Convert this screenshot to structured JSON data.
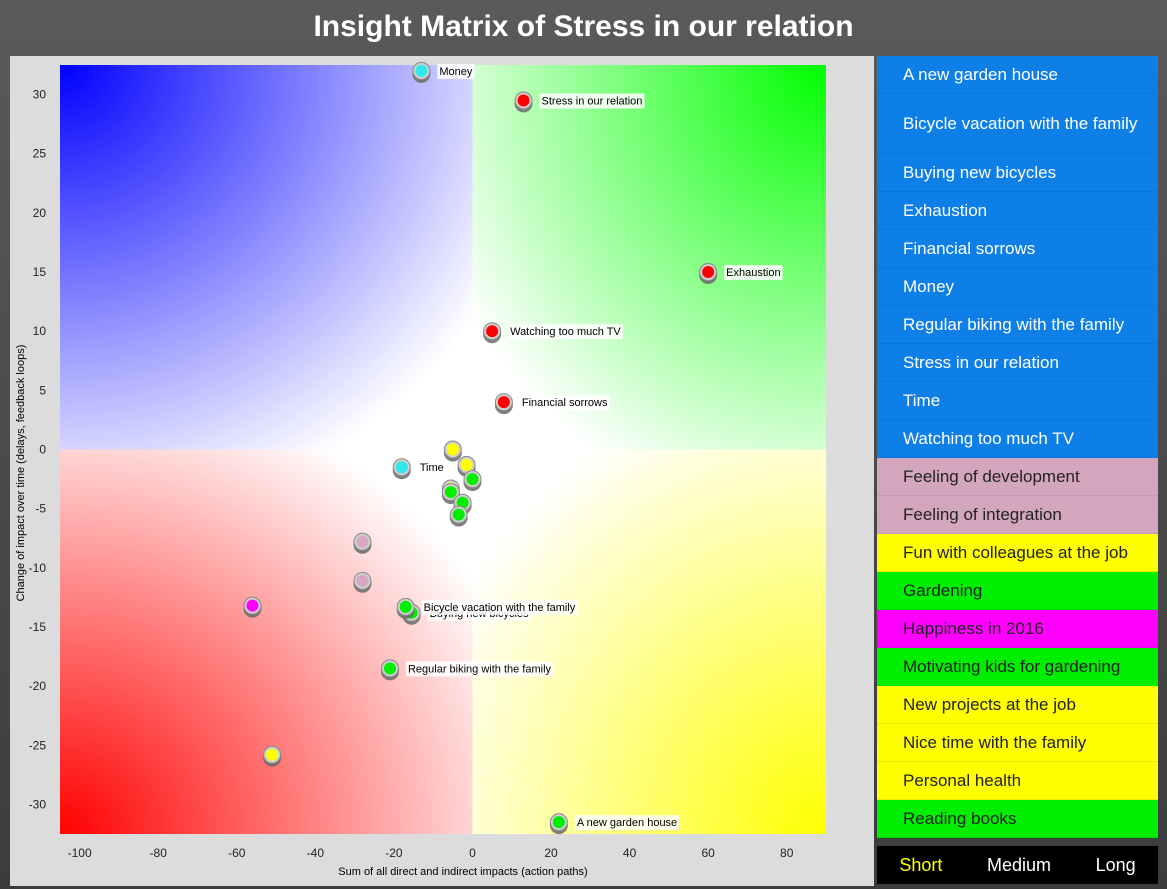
{
  "page": {
    "title": "Insight Matrix of Stress in our relation"
  },
  "chart_data": {
    "type": "scatter",
    "title": "Insight Matrix of Stress in our relation",
    "xlabel": "Sum of all direct and indirect impacts (action paths)",
    "ylabel": "Change of impact over time (delays, feedback loops)",
    "xlim": [
      -105,
      90
    ],
    "ylim": [
      -32.5,
      32.5
    ],
    "xticks": [
      -100,
      -80,
      -60,
      -40,
      -20,
      0,
      20,
      40,
      60,
      80
    ],
    "yticks": [
      30,
      25,
      20,
      15,
      10,
      5,
      0,
      -5,
      -10,
      -15,
      -20,
      -25,
      -30
    ],
    "quadrant_colors": {
      "top_left": "#0000ff",
      "top_right": "#00ff00",
      "bottom_left": "#ff0000",
      "bottom_right": "#ffff00"
    },
    "points": [
      {
        "label": "Money",
        "x": -13,
        "y": 32,
        "color": "#30e8e8"
      },
      {
        "label": "Stress in our relation",
        "x": 13,
        "y": 29.5,
        "color": "#ff0000"
      },
      {
        "label": "Exhaustion",
        "x": 60,
        "y": 15,
        "color": "#ff0000"
      },
      {
        "label": "Watching too much TV",
        "x": 5,
        "y": 10,
        "color": "#ff0000"
      },
      {
        "label": "Financial sorrows",
        "x": 8,
        "y": 4,
        "color": "#ff0000"
      },
      {
        "label": "",
        "x": -5,
        "y": 0,
        "color": "#ffff00"
      },
      {
        "label": "Time",
        "x": -18,
        "y": -1.5,
        "color": "#30e8e8"
      },
      {
        "label": "",
        "x": -1.5,
        "y": -1.3,
        "color": "#ffff00"
      },
      {
        "label": "",
        "x": 0,
        "y": -2.5,
        "color": "#00ee00"
      },
      {
        "label": "",
        "x": -5.5,
        "y": -3.3,
        "color": "#ffff00"
      },
      {
        "label": "",
        "x": -5.5,
        "y": -3.6,
        "color": "#00ee00"
      },
      {
        "label": "",
        "x": -2.5,
        "y": -4.5,
        "color": "#00ee00"
      },
      {
        "label": "",
        "x": -3.5,
        "y": -5.5,
        "color": "#00ee00"
      },
      {
        "label": "",
        "x": -28,
        "y": -7.8,
        "color": "#d8a8c0"
      },
      {
        "label": "",
        "x": -28,
        "y": -11.1,
        "color": "#d8a8c0"
      },
      {
        "label": "",
        "x": -56,
        "y": -13.2,
        "color": "#ff00ff"
      },
      {
        "label": "Buying new bicycles",
        "x": -15.5,
        "y": -13.8,
        "color": "#00ee00"
      },
      {
        "label": "Bicycle vacation with the family",
        "x": -17,
        "y": -13.3,
        "color": "#00ee00"
      },
      {
        "label": "Regular biking with the family",
        "x": -21,
        "y": -18.5,
        "color": "#00ee00"
      },
      {
        "label": "",
        "x": -51,
        "y": -25.8,
        "color": "#ffff00"
      },
      {
        "label": "A new garden house",
        "x": 22,
        "y": -31.5,
        "color": "#00ee00"
      }
    ]
  },
  "sidebar": {
    "items": [
      {
        "label": "A new garden house",
        "bg": "#0f7fe8",
        "fg": "#ffffff"
      },
      {
        "label": "Bicycle vacation with the family",
        "bg": "#0f7fe8",
        "fg": "#ffffff"
      },
      {
        "label": "Buying new bicycles",
        "bg": "#0f7fe8",
        "fg": "#ffffff"
      },
      {
        "label": "Exhaustion",
        "bg": "#0f7fe8",
        "fg": "#ffffff"
      },
      {
        "label": "Financial sorrows",
        "bg": "#0f7fe8",
        "fg": "#ffffff"
      },
      {
        "label": "Money",
        "bg": "#0f7fe8",
        "fg": "#ffffff"
      },
      {
        "label": "Regular biking with the family",
        "bg": "#0f7fe8",
        "fg": "#ffffff"
      },
      {
        "label": "Stress in our relation",
        "bg": "#0f7fe8",
        "fg": "#ffffff"
      },
      {
        "label": "Time",
        "bg": "#0f7fe8",
        "fg": "#ffffff"
      },
      {
        "label": "Watching too much TV",
        "bg": "#0f7fe8",
        "fg": "#ffffff"
      },
      {
        "label": "Feeling of development",
        "bg": "#d4a6be",
        "fg": "#222222"
      },
      {
        "label": "Feeling of integration",
        "bg": "#d4a6be",
        "fg": "#222222"
      },
      {
        "label": "Fun with colleagues at the job",
        "bg": "#ffff00",
        "fg": "#222222"
      },
      {
        "label": "Gardening",
        "bg": "#00ee00",
        "fg": "#222222"
      },
      {
        "label": "Happiness in 2016",
        "bg": "#ff00ff",
        "fg": "#222222"
      },
      {
        "label": "Motivating kids for gardening",
        "bg": "#00ee00",
        "fg": "#222222"
      },
      {
        "label": "New projects at the job",
        "bg": "#ffff00",
        "fg": "#222222"
      },
      {
        "label": "Nice time with the family",
        "bg": "#ffff00",
        "fg": "#222222"
      },
      {
        "label": "Personal health",
        "bg": "#ffff00",
        "fg": "#222222"
      },
      {
        "label": "Reading books",
        "bg": "#00ee00",
        "fg": "#222222"
      }
    ]
  },
  "time_tabs": {
    "short": "Short",
    "medium": "Medium",
    "long": "Long",
    "active": "short"
  }
}
